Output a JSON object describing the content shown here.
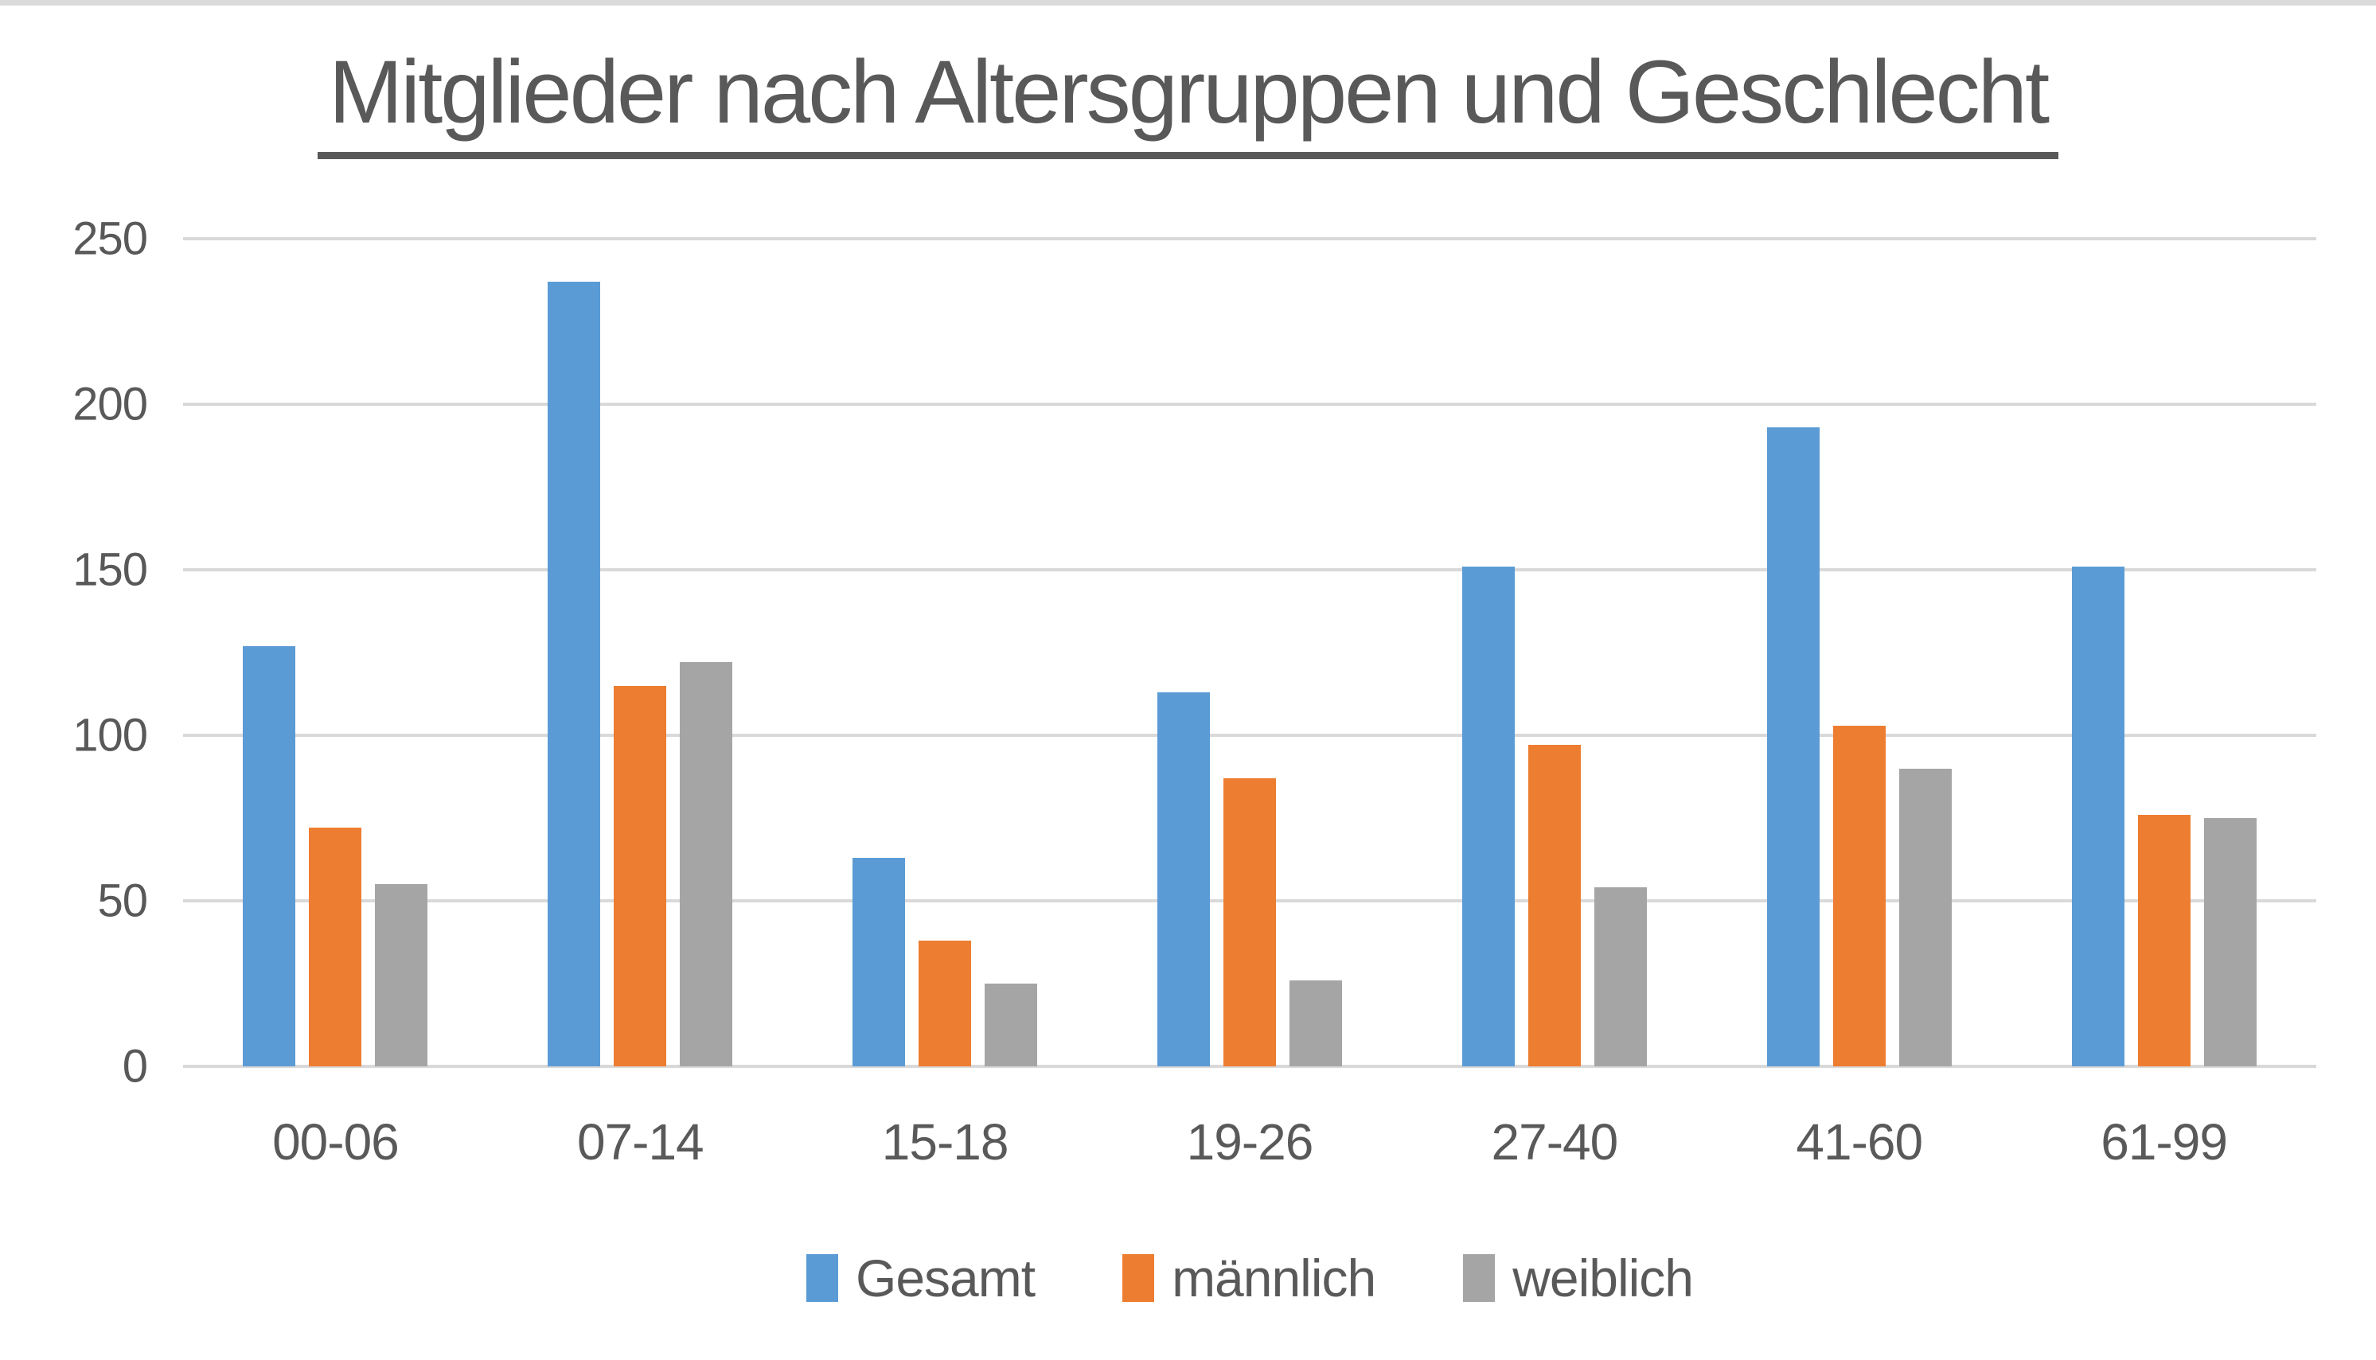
{
  "page": {
    "background": "#ffffff",
    "top_strip_color": "#dbdbdb"
  },
  "chart_data": {
    "type": "bar",
    "title": "Mitglieder nach Altersgruppen und Geschlecht",
    "xlabel": "",
    "ylabel": "",
    "categories": [
      "00-06",
      "07-14",
      "15-18",
      "19-26",
      "27-40",
      "41-60",
      "61-99"
    ],
    "series": [
      {
        "name": "Gesamt",
        "color": "#5b9bd5",
        "values": [
          127,
          237,
          63,
          113,
          151,
          193,
          151
        ]
      },
      {
        "name": "männlich",
        "color": "#ed7d31",
        "values": [
          72,
          115,
          38,
          87,
          97,
          103,
          76
        ]
      },
      {
        "name": "weiblich",
        "color": "#a5a5a5",
        "values": [
          55,
          122,
          25,
          26,
          54,
          90,
          75
        ]
      }
    ],
    "ylim": [
      0,
      250
    ],
    "yticks": [
      0,
      50,
      100,
      150,
      200,
      250
    ],
    "grid": true,
    "legend_position": "bottom",
    "colors": {
      "grid": "#d9d9d9",
      "axis": "#d9d9d9",
      "text": "#595959",
      "title_underline": "#595959"
    }
  }
}
